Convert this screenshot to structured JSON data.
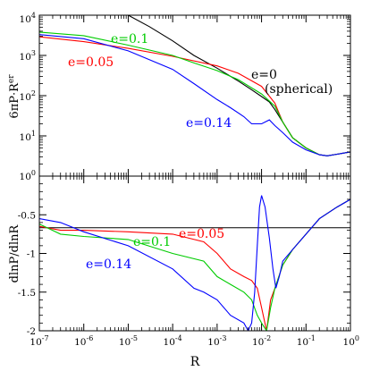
{
  "chart_data": [
    {
      "type": "line",
      "title": "",
      "xlabel": "",
      "ylabel": "6πP·R^{e_r}",
      "xscale": "log",
      "yscale": "log",
      "xlim": [
        1e-07,
        1
      ],
      "ylim": [
        1,
        10000
      ],
      "x_tick_labels": [
        "",
        "",
        "",
        "",
        "",
        "",
        "",
        ""
      ],
      "y_tick_labels": [
        "10^0",
        "10^1",
        "10^2",
        "10^3",
        "10^4"
      ],
      "grid": false,
      "annotations": [
        {
          "text": "e=0.1",
          "color": "#00cc00"
        },
        {
          "text": "e=0.05",
          "color": "#ff0000"
        },
        {
          "text": "e=0",
          "color": "#000000"
        },
        {
          "text": "(spherical)",
          "color": "#000000"
        },
        {
          "text": "e=0.14",
          "color": "#0000ff"
        }
      ],
      "series": [
        {
          "name": "e=0",
          "color": "#000000",
          "x": [
            1e-05,
            3e-05,
            0.0001,
            0.0003,
            0.001,
            0.003,
            0.006,
            0.01,
            0.015,
            0.02,
            0.03,
            0.05,
            0.1,
            0.2,
            0.3,
            0.5,
            1
          ],
          "y": [
            10000,
            5200,
            2300,
            1000,
            480,
            230,
            140,
            95,
            70,
            45,
            22,
            9,
            5,
            3.4,
            3.2,
            3.5,
            4
          ]
        },
        {
          "name": "e=0.05",
          "color": "#ff0000",
          "x": [
            1e-07,
            1e-06,
            1e-05,
            0.0001,
            0.001,
            0.003,
            0.01,
            0.02,
            0.03,
            0.05,
            0.1,
            0.2,
            0.3,
            0.5,
            1
          ],
          "y": [
            2900,
            2200,
            1500,
            950,
            550,
            360,
            170,
            65,
            22,
            9,
            5,
            3.4,
            3.2,
            3.5,
            4
          ]
        },
        {
          "name": "e=0.1",
          "color": "#00cc00",
          "x": [
            1e-07,
            1e-06,
            1e-05,
            0.0001,
            0.0003,
            0.001,
            0.003,
            0.01,
            0.02,
            0.03,
            0.05,
            0.1,
            0.2,
            0.3,
            0.5,
            1
          ],
          "y": [
            3800,
            3100,
            1800,
            1000,
            650,
            420,
            250,
            110,
            55,
            22,
            9,
            5,
            3.4,
            3.2,
            3.5,
            4
          ]
        },
        {
          "name": "e=0.14",
          "color": "#0000ff",
          "x": [
            1e-07,
            1e-06,
            1e-05,
            0.0001,
            0.0003,
            0.001,
            0.002,
            0.004,
            0.006,
            0.01,
            0.015,
            0.02,
            0.03,
            0.05,
            0.1,
            0.2,
            0.3,
            0.5,
            1
          ],
          "y": [
            3300,
            2600,
            1300,
            450,
            200,
            80,
            50,
            30,
            20,
            20,
            25,
            18,
            12,
            7,
            4.5,
            3.4,
            3.2,
            3.5,
            4
          ]
        }
      ]
    },
    {
      "type": "line",
      "title": "",
      "xlabel": "R",
      "ylabel": "dlnP/dlnR",
      "xscale": "log",
      "xlim": [
        1e-07,
        1
      ],
      "ylim": [
        -2,
        0
      ],
      "x_tick_labels": [
        "10^-7",
        "10^-6",
        "10^-5",
        "10^-4",
        "10^-3",
        "10^-2",
        "10^-1",
        "10^0"
      ],
      "y_tick_labels": [
        "-2",
        "-1.5",
        "-1",
        "-0.5",
        "0"
      ],
      "grid": false,
      "reference_lines": [
        {
          "y": -0.667,
          "color": "#000000"
        }
      ],
      "annotations": [
        {
          "text": "e=0.05",
          "color": "#ff0000"
        },
        {
          "text": "e=0.1",
          "color": "#00cc00"
        },
        {
          "text": "e=0.14",
          "color": "#0000ff"
        }
      ],
      "series": [
        {
          "name": "e=0.05",
          "color": "#ff0000",
          "x": [
            1e-07,
            3e-07,
            1e-06,
            1e-05,
            0.0001,
            0.0005,
            0.001,
            0.002,
            0.004,
            0.006,
            0.008,
            0.01,
            0.013,
            0.016,
            0.02,
            0.03,
            0.05,
            0.1,
            0.2,
            0.5,
            1
          ],
          "y": [
            -0.65,
            -0.7,
            -0.7,
            -0.72,
            -0.75,
            -0.85,
            -1.0,
            -1.2,
            -1.3,
            -1.35,
            -1.45,
            -1.7,
            -2.0,
            -1.6,
            -1.45,
            -1.15,
            -0.95,
            -0.75,
            -0.55,
            -0.4,
            -0.3
          ]
        },
        {
          "name": "e=0.1",
          "color": "#00cc00",
          "x": [
            1e-07,
            3e-07,
            1e-06,
            1e-05,
            0.0001,
            0.0005,
            0.001,
            0.002,
            0.004,
            0.006,
            0.008,
            0.01,
            0.013,
            0.016,
            0.02,
            0.03,
            0.05,
            0.1,
            0.2,
            0.5,
            1
          ],
          "y": [
            -0.62,
            -0.75,
            -0.78,
            -0.82,
            -1.0,
            -1.1,
            -1.3,
            -1.4,
            -1.5,
            -1.6,
            -1.8,
            -1.9,
            -2.0,
            -1.7,
            -1.45,
            -1.15,
            -0.95,
            -0.75,
            -0.55,
            -0.4,
            -0.3
          ]
        },
        {
          "name": "e=0.14",
          "color": "#0000ff",
          "x": [
            1e-07,
            3e-07,
            1e-06,
            1e-05,
            0.0001,
            0.0003,
            0.0005,
            0.001,
            0.002,
            0.004,
            0.005,
            0.006,
            0.007,
            0.008,
            0.009,
            0.01,
            0.012,
            0.015,
            0.018,
            0.021,
            0.025,
            0.03,
            0.05,
            0.1,
            0.2,
            0.5,
            1
          ],
          "y": [
            -0.55,
            -0.6,
            -0.72,
            -0.9,
            -1.2,
            -1.45,
            -1.5,
            -1.6,
            -1.8,
            -1.9,
            -2.0,
            -1.9,
            -1.5,
            -0.9,
            -0.4,
            -0.25,
            -0.4,
            -0.8,
            -1.2,
            -1.45,
            -1.3,
            -1.1,
            -0.95,
            -0.75,
            -0.55,
            -0.4,
            -0.3
          ]
        }
      ]
    }
  ]
}
